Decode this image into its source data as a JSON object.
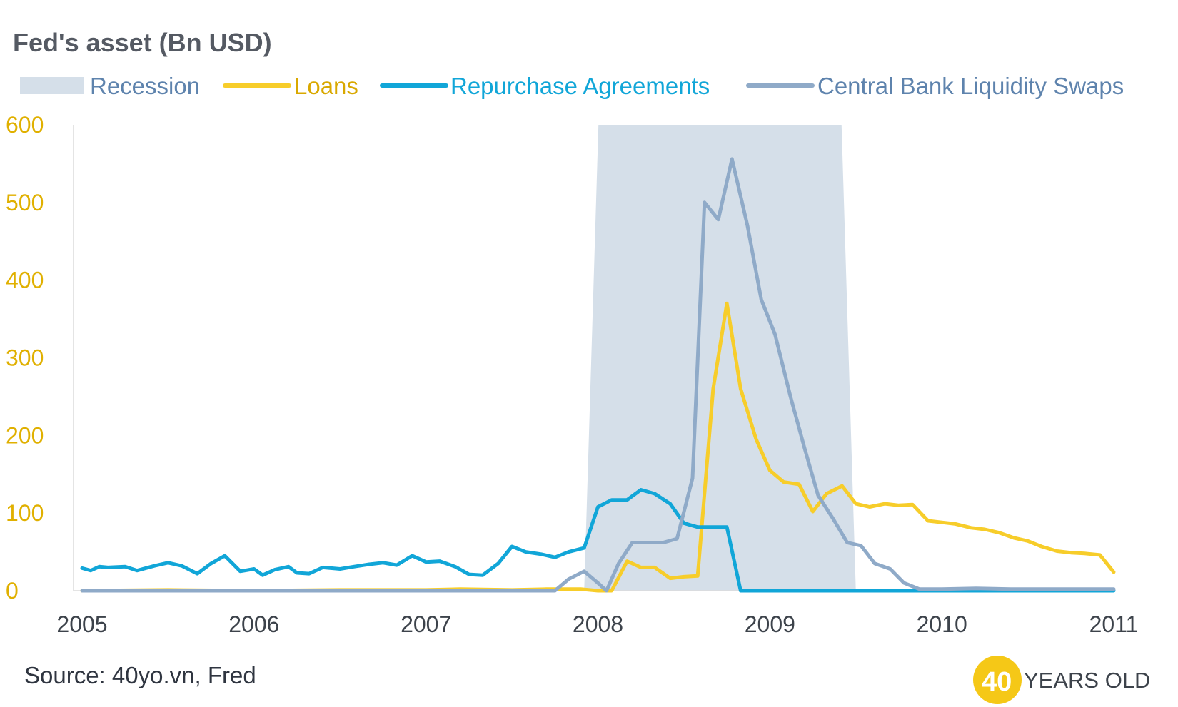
{
  "chart_data": {
    "type": "line",
    "title": "Fed's asset (Bn USD)",
    "xlabel": "",
    "ylabel": "",
    "ylim": [
      0,
      600
    ],
    "yticks": [
      0,
      100,
      200,
      300,
      400,
      500,
      600
    ],
    "xlim": [
      2005,
      2011
    ],
    "xticks": [
      2005,
      2006,
      2007,
      2008,
      2009,
      2010,
      2011
    ],
    "xtick_labels": [
      "2005",
      "2006",
      "2007",
      "2008",
      "2009",
      "2010",
      "2011"
    ],
    "ytick_labels": [
      "0",
      "100",
      "200",
      "300",
      "400",
      "500",
      "600"
    ],
    "recession": {
      "name": "Recession",
      "start": 2007.92,
      "end": 2009.5,
      "color": "#d5dfe9"
    },
    "series": [
      {
        "name": "Loans",
        "color": "#f7cd2a",
        "points": [
          [
            2005,
            0
          ],
          [
            2005.5,
            1
          ],
          [
            2006,
            0
          ],
          [
            2006.5,
            1
          ],
          [
            2007,
            1
          ],
          [
            2007.2,
            2
          ],
          [
            2007.5,
            1
          ],
          [
            2007.7,
            2
          ],
          [
            2007.9,
            2
          ],
          [
            2008.0,
            0
          ],
          [
            2008.08,
            0
          ],
          [
            2008.17,
            38
          ],
          [
            2008.25,
            30
          ],
          [
            2008.33,
            30
          ],
          [
            2008.42,
            16
          ],
          [
            2008.5,
            18
          ],
          [
            2008.58,
            19
          ],
          [
            2008.67,
            260
          ],
          [
            2008.75,
            370
          ],
          [
            2008.83,
            260
          ],
          [
            2008.92,
            195
          ],
          [
            2009.0,
            155
          ],
          [
            2009.08,
            140
          ],
          [
            2009.17,
            137
          ],
          [
            2009.25,
            102
          ],
          [
            2009.33,
            125
          ],
          [
            2009.42,
            135
          ],
          [
            2009.5,
            112
          ],
          [
            2009.58,
            108
          ],
          [
            2009.67,
            112
          ],
          [
            2009.75,
            110
          ],
          [
            2009.83,
            111
          ],
          [
            2009.92,
            90
          ],
          [
            2010.0,
            88
          ],
          [
            2010.08,
            86
          ],
          [
            2010.17,
            81
          ],
          [
            2010.25,
            79
          ],
          [
            2010.33,
            75
          ],
          [
            2010.42,
            68
          ],
          [
            2010.5,
            64
          ],
          [
            2010.58,
            57
          ],
          [
            2010.67,
            51
          ],
          [
            2010.75,
            49
          ],
          [
            2010.83,
            48
          ],
          [
            2010.92,
            46
          ],
          [
            2011.0,
            24
          ]
        ]
      },
      {
        "name": "Repurchase Agreements",
        "color": "#11a6d8",
        "points": [
          [
            2005,
            29
          ],
          [
            2005.05,
            26
          ],
          [
            2005.1,
            31
          ],
          [
            2005.15,
            30
          ],
          [
            2005.25,
            31
          ],
          [
            2005.32,
            26
          ],
          [
            2005.42,
            32
          ],
          [
            2005.5,
            36
          ],
          [
            2005.58,
            32
          ],
          [
            2005.67,
            22
          ],
          [
            2005.75,
            35
          ],
          [
            2005.83,
            45
          ],
          [
            2005.92,
            25
          ],
          [
            2006.0,
            28
          ],
          [
            2006.05,
            20
          ],
          [
            2006.12,
            27
          ],
          [
            2006.2,
            31
          ],
          [
            2006.25,
            23
          ],
          [
            2006.32,
            22
          ],
          [
            2006.4,
            30
          ],
          [
            2006.5,
            28
          ],
          [
            2006.58,
            31
          ],
          [
            2006.67,
            34
          ],
          [
            2006.75,
            36
          ],
          [
            2006.83,
            33
          ],
          [
            2006.92,
            45
          ],
          [
            2007.0,
            37
          ],
          [
            2007.08,
            38
          ],
          [
            2007.17,
            31
          ],
          [
            2007.25,
            21
          ],
          [
            2007.33,
            20
          ],
          [
            2007.42,
            35
          ],
          [
            2007.5,
            57
          ],
          [
            2007.58,
            50
          ],
          [
            2007.67,
            47
          ],
          [
            2007.75,
            43
          ],
          [
            2007.83,
            50
          ],
          [
            2007.92,
            55
          ],
          [
            2008.0,
            108
          ],
          [
            2008.08,
            117
          ],
          [
            2008.17,
            117
          ],
          [
            2008.25,
            130
          ],
          [
            2008.33,
            125
          ],
          [
            2008.42,
            112
          ],
          [
            2008.5,
            87
          ],
          [
            2008.58,
            82
          ],
          [
            2008.67,
            82
          ],
          [
            2008.75,
            82
          ],
          [
            2008.83,
            0
          ],
          [
            2009.0,
            0
          ],
          [
            2009.5,
            0
          ],
          [
            2010.0,
            0
          ],
          [
            2011.0,
            0
          ]
        ]
      },
      {
        "name": "Central Bank Liquidity Swaps",
        "color": "#8faac8",
        "points": [
          [
            2005,
            0
          ],
          [
            2006,
            0
          ],
          [
            2007,
            0
          ],
          [
            2007.75,
            0
          ],
          [
            2007.83,
            15
          ],
          [
            2007.92,
            25
          ],
          [
            2008.0,
            10
          ],
          [
            2008.05,
            0
          ],
          [
            2008.12,
            35
          ],
          [
            2008.2,
            62
          ],
          [
            2008.3,
            62
          ],
          [
            2008.38,
            62
          ],
          [
            2008.46,
            67
          ],
          [
            2008.55,
            145
          ],
          [
            2008.62,
            500
          ],
          [
            2008.7,
            478
          ],
          [
            2008.78,
            556
          ],
          [
            2008.87,
            470
          ],
          [
            2008.95,
            375
          ],
          [
            2009.03,
            330
          ],
          [
            2009.12,
            250
          ],
          [
            2009.2,
            185
          ],
          [
            2009.28,
            123
          ],
          [
            2009.37,
            92
          ],
          [
            2009.45,
            62
          ],
          [
            2009.53,
            58
          ],
          [
            2009.61,
            35
          ],
          [
            2009.7,
            28
          ],
          [
            2009.78,
            10
          ],
          [
            2009.87,
            2
          ],
          [
            2010.0,
            2
          ],
          [
            2010.2,
            3
          ],
          [
            2010.4,
            2
          ],
          [
            2011.0,
            2
          ]
        ]
      }
    ]
  },
  "legend": [
    {
      "label": "Recession",
      "color": "#5e83ad",
      "swatch": "#d5dfe9",
      "kind": "area"
    },
    {
      "label": "Loans",
      "color": "#d9a800",
      "swatch": "#f7cd2a",
      "kind": "line"
    },
    {
      "label": "Repurchase Agreements",
      "color": "#11a6d8",
      "swatch": "#11a6d8",
      "kind": "line"
    },
    {
      "label": "Central Bank Liquidity Swaps",
      "color": "#5e83ad",
      "swatch": "#8faac8",
      "kind": "line"
    }
  ],
  "footer": {
    "source": "Source: 40yo.vn, Fred",
    "logo_number": "40",
    "logo_text": "YEARS OLD",
    "logo_color": "#f5c817"
  }
}
